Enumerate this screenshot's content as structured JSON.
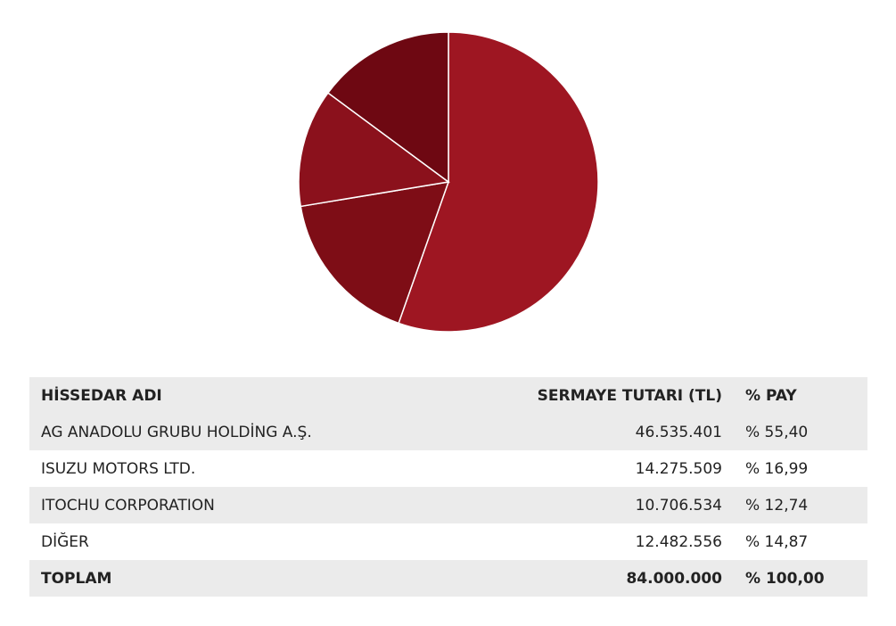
{
  "chart_data": {
    "type": "pie",
    "categories": [
      "AG ANADOLU GRUBU HOLDİNG A.Ş.",
      "ISUZU MOTORS LTD.",
      "ITOCHU CORPORATION",
      "DİĞER"
    ],
    "values": [
      55.4,
      16.99,
      12.74,
      14.87
    ],
    "colors": [
      "#9e1622",
      "#7e0d16",
      "#8b111c",
      "#6e0812"
    ]
  },
  "table": {
    "headers": {
      "name": "HİSSEDAR ADI",
      "amount": "SERMAYE TUTARI (TL)",
      "share": "% PAY"
    },
    "rows": [
      {
        "name": "AG ANADOLU GRUBU HOLDİNG A.Ş.",
        "amount": "46.535.401",
        "share": "% 55,40"
      },
      {
        "name": "ISUZU MOTORS LTD.",
        "amount": "14.275.509",
        "share": "% 16,99"
      },
      {
        "name": "ITOCHU CORPORATION",
        "amount": "10.706.534",
        "share": "% 12,74"
      },
      {
        "name": "DİĞER",
        "amount": "12.482.556",
        "share": "% 14,87"
      }
    ],
    "total": {
      "name": "TOPLAM",
      "amount": "84.000.000",
      "share": "% 100,00"
    }
  }
}
